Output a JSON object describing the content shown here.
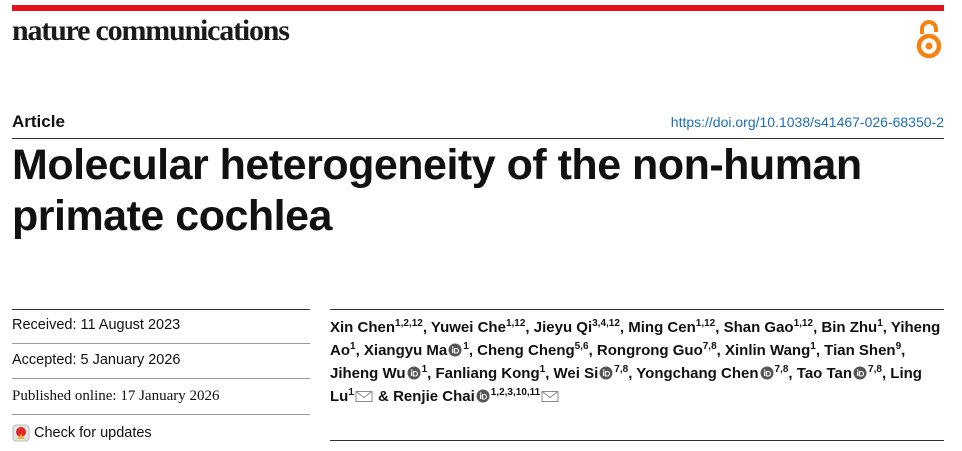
{
  "journal": "nature communications",
  "article_type": "Article",
  "doi": "https://doi.org/10.1038/s41467-026-68350-2",
  "title": "Molecular heterogeneity of the non-human primate cochlea",
  "dates": {
    "received": "Received: 11 August 2023",
    "accepted": "Accepted: 5 January 2026",
    "published": "Published online: 17 January 2026"
  },
  "check_updates": "Check for updates",
  "authors": [
    {
      "name": "Xin Chen",
      "affiliations": "1,2,12",
      "orcid": false,
      "corresponding": false,
      "separator": ", "
    },
    {
      "name": "Yuwei Che",
      "affiliations": "1,12",
      "orcid": false,
      "corresponding": false,
      "separator": ", "
    },
    {
      "name": "Jieyu Qi",
      "affiliations": "3,4,12",
      "orcid": false,
      "corresponding": false,
      "separator": ", "
    },
    {
      "name": "Ming Cen",
      "affiliations": "1,12",
      "orcid": false,
      "corresponding": false,
      "separator": ", "
    },
    {
      "name": "Shan Gao",
      "affiliations": "1,12",
      "orcid": false,
      "corresponding": false,
      "separator": ", "
    },
    {
      "name": "Bin Zhu",
      "affiliations": "1",
      "orcid": false,
      "corresponding": false,
      "separator": ", "
    },
    {
      "name": "Yiheng Ao",
      "affiliations": "1",
      "orcid": false,
      "corresponding": false,
      "separator": ", "
    },
    {
      "name": "Xiangyu Ma",
      "affiliations": "1",
      "orcid": true,
      "corresponding": false,
      "separator": ", "
    },
    {
      "name": "Cheng Cheng",
      "affiliations": "5,6",
      "orcid": false,
      "corresponding": false,
      "separator": ", "
    },
    {
      "name": "Rongrong Guo",
      "affiliations": "7,8",
      "orcid": false,
      "corresponding": false,
      "separator": ", "
    },
    {
      "name": "Xinlin Wang",
      "affiliations": "1",
      "orcid": false,
      "corresponding": false,
      "separator": ", "
    },
    {
      "name": "Tian Shen",
      "affiliations": "9",
      "orcid": false,
      "corresponding": false,
      "separator": ", "
    },
    {
      "name": "Jiheng Wu",
      "affiliations": "1",
      "orcid": true,
      "corresponding": false,
      "separator": ", "
    },
    {
      "name": "Fanliang Kong",
      "affiliations": "1",
      "orcid": false,
      "corresponding": false,
      "separator": ", "
    },
    {
      "name": "Wei Si",
      "affiliations": "7,8",
      "orcid": true,
      "corresponding": false,
      "separator": ", "
    },
    {
      "name": "Yongchang Chen",
      "affiliations": "7,8",
      "orcid": true,
      "corresponding": false,
      "separator": ", "
    },
    {
      "name": "Tao Tan",
      "affiliations": "7,8",
      "orcid": true,
      "corresponding": false,
      "separator": ", "
    },
    {
      "name": "Ling Lu",
      "affiliations": "1",
      "orcid": false,
      "corresponding": true,
      "separator": " & "
    },
    {
      "name": "Renjie Chai",
      "affiliations": "1,2,3,10,11",
      "orcid": true,
      "corresponding": true
    }
  ]
}
